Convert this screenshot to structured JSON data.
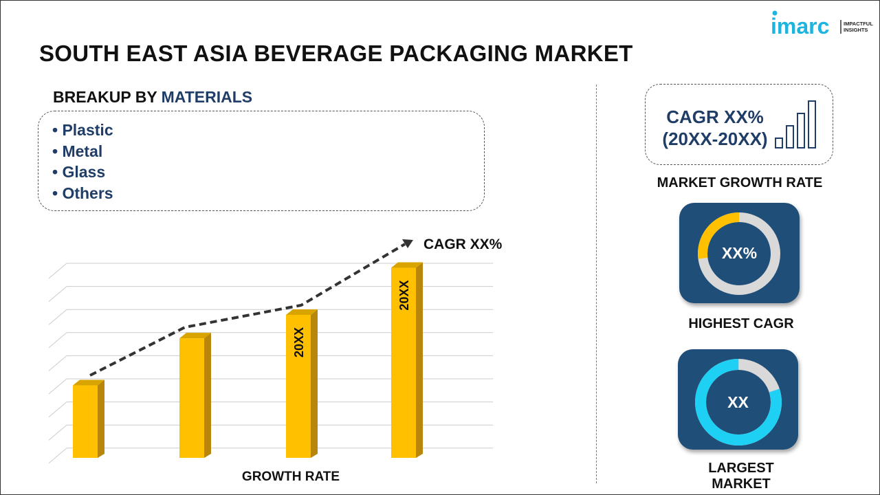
{
  "title": "SOUTH EAST ASIA BEVERAGE PACKAGING MARKET",
  "logo": {
    "brand": "imarc",
    "tagline_1": "IMPACTFUL",
    "tagline_2": "INSIGHTS",
    "color": "#1cb5e0"
  },
  "breakup": {
    "prefix": "BREAKUP BY",
    "highlight": "MATERIALS",
    "items": [
      "Plastic",
      "Metal",
      "Glass",
      "Others"
    ]
  },
  "chart": {
    "cagr_label": "CAGR XX%",
    "x_label": "GROWTH RATE",
    "bar_labels": [
      "",
      "",
      "20XX",
      "20XX"
    ],
    "bar_color": "#ffc000",
    "relative_heights": [
      0.37,
      0.61,
      0.73,
      0.97
    ]
  },
  "right": {
    "cagr_line1": "CAGR XX%",
    "cagr_line2": "(20XX-20XX)",
    "market_growth_label": "MARKET GROWTH RATE",
    "highest_cagr_value": "XX%",
    "highest_cagr_label": "HIGHEST CAGR",
    "highest_cagr_fill": 0.27,
    "largest_market_value": "XX",
    "largest_market_label": "LARGEST MARKET",
    "largest_market_fill": 0.8,
    "card_color": "#1f4e79",
    "accent_yellow": "#ffc000",
    "accent_cyan": "#1fd0f5"
  }
}
